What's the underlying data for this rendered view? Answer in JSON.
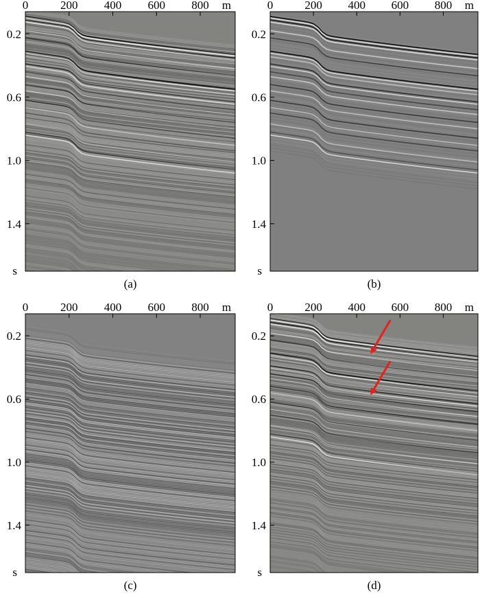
{
  "colors": {
    "background": "#808080",
    "dark_event": "#111111",
    "bright_event": "#f4f4f4",
    "arrow": "#e8201c"
  },
  "chart_data": [
    {
      "type": "seismic-section",
      "caption": "(a)",
      "x_unit": "m",
      "y_unit": "s",
      "xlim": [
        0,
        960
      ],
      "ylim": [
        0.06,
        1.7
      ],
      "xticks": [
        0,
        200,
        400,
        600,
        800
      ],
      "xtick_labels": [
        "0",
        "200",
        "400",
        "600",
        "800"
      ],
      "yticks": [
        0.2,
        0.6,
        1.0,
        1.4
      ],
      "ytick_labels": [
        "0.2",
        "0.6",
        "1.0",
        "1.4"
      ],
      "content": "full",
      "background": "#838380"
    },
    {
      "type": "seismic-section",
      "caption": "(b)",
      "x_unit": "m",
      "y_unit": "s",
      "xlim": [
        0,
        960
      ],
      "ylim": [
        0.06,
        1.7
      ],
      "xticks": [
        0,
        200,
        400,
        600,
        800
      ],
      "xtick_labels": [
        "0",
        "200",
        "400",
        "600",
        "800"
      ],
      "yticks": [
        0.2,
        0.6,
        1.0,
        1.4
      ],
      "ytick_labels": [
        "0.2",
        "0.6",
        "1.0",
        "1.4"
      ],
      "content": "signal",
      "background": "#808080"
    },
    {
      "type": "seismic-section",
      "caption": "(c)",
      "x_unit": "m",
      "y_unit": "s",
      "xlim": [
        0,
        960
      ],
      "ylim": [
        0.06,
        1.7
      ],
      "xticks": [
        0,
        200,
        400,
        600,
        800
      ],
      "xtick_labels": [
        "0",
        "200",
        "400",
        "600",
        "800"
      ],
      "yticks": [
        0.2,
        0.6,
        1.0,
        1.4
      ],
      "ytick_labels": [
        "0.2",
        "0.6",
        "1.0",
        "1.4"
      ],
      "content": "multiples",
      "background": "#828282"
    },
    {
      "type": "seismic-section",
      "caption": "(d)",
      "x_unit": "m",
      "y_unit": "s",
      "xlim": [
        0,
        960
      ],
      "ylim": [
        0.06,
        1.7
      ],
      "xticks": [
        0,
        200,
        400,
        600,
        800
      ],
      "xtick_labels": [
        "0",
        "200",
        "400",
        "600",
        "800"
      ],
      "yticks": [
        0.2,
        0.6,
        1.0,
        1.4
      ],
      "ytick_labels": [
        "0.2",
        "0.6",
        "1.0",
        "1.4"
      ],
      "content": "full",
      "background": "#838380",
      "annotations": [
        {
          "type": "arrow",
          "color": "#e8201c",
          "from": [
            555,
            0.1
          ],
          "to": [
            470,
            0.3
          ]
        },
        {
          "type": "arrow",
          "color": "#e8201c",
          "from": [
            555,
            0.36
          ],
          "to": [
            470,
            0.56
          ]
        }
      ]
    }
  ]
}
